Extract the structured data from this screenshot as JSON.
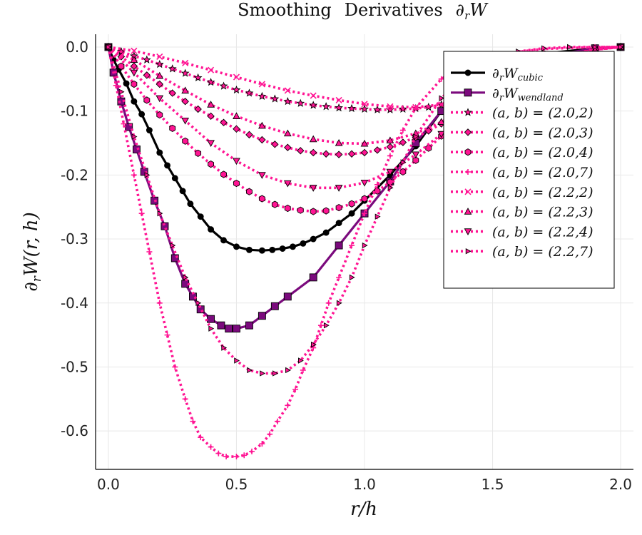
{
  "chart_data": {
    "type": "line",
    "title": "Smoothing Derivatives ∂rW",
    "xlabel": "r/h",
    "ylabel": "∂rW(r, h)",
    "xlim": [
      -0.05,
      2.05
    ],
    "ylim": [
      -0.66,
      0.02
    ],
    "xticks": [
      0.0,
      0.5,
      1.0,
      1.5,
      2.0
    ],
    "xtick_labels": [
      "0.0",
      "0.5",
      "1.0",
      "1.5",
      "2.0"
    ],
    "yticks": [
      0.0,
      -0.1,
      -0.2,
      -0.3,
      -0.4,
      -0.5,
      -0.6
    ],
    "ytick_labels": [
      "0.0",
      "-0.1",
      "-0.2",
      "-0.3",
      "-0.4",
      "-0.5",
      "-0.6"
    ],
    "grid": true,
    "legend_position": "top-right",
    "series": [
      {
        "name": "∂rWcubic",
        "color": "#000000",
        "style": "solid",
        "marker": "circle",
        "x": [
          0.0,
          0.02,
          0.04,
          0.07,
          0.1,
          0.13,
          0.16,
          0.2,
          0.23,
          0.26,
          0.29,
          0.32,
          0.36,
          0.4,
          0.45,
          0.5,
          0.55,
          0.6,
          0.64,
          0.68,
          0.72,
          0.76,
          0.8,
          0.85,
          0.9,
          0.95,
          1.0,
          1.1,
          1.2,
          1.3,
          1.4,
          1.5,
          1.7,
          1.9,
          2.0
        ],
        "y": [
          0.0,
          -0.02,
          -0.035,
          -0.057,
          -0.085,
          -0.105,
          -0.13,
          -0.165,
          -0.185,
          -0.205,
          -0.225,
          -0.245,
          -0.265,
          -0.285,
          -0.302,
          -0.312,
          -0.317,
          -0.318,
          -0.317,
          -0.315,
          -0.312,
          -0.307,
          -0.3,
          -0.29,
          -0.275,
          -0.26,
          -0.24,
          -0.2,
          -0.155,
          -0.1,
          -0.06,
          -0.03,
          -0.01,
          -0.002,
          0.0
        ]
      },
      {
        "name": "∂rWwendland",
        "color": "#7b0a7d",
        "style": "solid",
        "marker": "square",
        "x": [
          0.0,
          0.02,
          0.05,
          0.08,
          0.11,
          0.14,
          0.18,
          0.22,
          0.26,
          0.3,
          0.33,
          0.36,
          0.4,
          0.44,
          0.47,
          0.5,
          0.55,
          0.6,
          0.65,
          0.7,
          0.8,
          0.9,
          1.0,
          1.1,
          1.2,
          1.3,
          1.5,
          1.7,
          1.9,
          2.0
        ],
        "y": [
          0.0,
          -0.04,
          -0.085,
          -0.125,
          -0.16,
          -0.195,
          -0.24,
          -0.28,
          -0.33,
          -0.37,
          -0.39,
          -0.41,
          -0.425,
          -0.435,
          -0.44,
          -0.44,
          -0.435,
          -0.42,
          -0.405,
          -0.39,
          -0.36,
          -0.31,
          -0.26,
          -0.21,
          -0.15,
          -0.1,
          -0.045,
          -0.015,
          -0.002,
          0.0
        ]
      },
      {
        "name": "(a, b) = (2.0,2)",
        "color": "#ff1493",
        "style": "dotted",
        "marker": "star",
        "x": [
          0.0,
          0.05,
          0.1,
          0.15,
          0.2,
          0.25,
          0.3,
          0.35,
          0.4,
          0.45,
          0.5,
          0.55,
          0.6,
          0.65,
          0.7,
          0.75,
          0.8,
          0.85,
          0.9,
          0.95,
          1.0,
          1.05,
          1.1,
          1.15,
          1.2,
          1.25,
          1.3,
          1.35,
          1.4,
          1.5,
          1.6,
          1.7,
          1.8,
          1.9,
          2.0
        ],
        "y": [
          0.0,
          -0.007,
          -0.014,
          -0.02,
          -0.027,
          -0.034,
          -0.041,
          -0.048,
          -0.055,
          -0.061,
          -0.067,
          -0.072,
          -0.077,
          -0.081,
          -0.085,
          -0.088,
          -0.091,
          -0.093,
          -0.095,
          -0.096,
          -0.097,
          -0.098,
          -0.098,
          -0.097,
          -0.096,
          -0.094,
          -0.09,
          -0.085,
          -0.078,
          -0.06,
          -0.042,
          -0.026,
          -0.013,
          -0.004,
          0.0
        ]
      },
      {
        "name": "(a, b) = (2.0,3)",
        "color": "#ff1493",
        "style": "dotted",
        "marker": "diamond",
        "x": [
          0.0,
          0.05,
          0.1,
          0.15,
          0.2,
          0.25,
          0.3,
          0.35,
          0.4,
          0.45,
          0.5,
          0.55,
          0.6,
          0.65,
          0.7,
          0.75,
          0.8,
          0.85,
          0.9,
          0.95,
          1.0,
          1.05,
          1.1,
          1.15,
          1.2,
          1.25,
          1.3,
          1.35,
          1.4,
          1.5,
          1.6,
          1.7,
          1.8,
          1.9,
          2.0
        ],
        "y": [
          0.0,
          -0.015,
          -0.03,
          -0.044,
          -0.058,
          -0.072,
          -0.085,
          -0.097,
          -0.108,
          -0.118,
          -0.128,
          -0.137,
          -0.145,
          -0.152,
          -0.157,
          -0.162,
          -0.165,
          -0.167,
          -0.168,
          -0.167,
          -0.165,
          -0.161,
          -0.156,
          -0.149,
          -0.141,
          -0.131,
          -0.12,
          -0.108,
          -0.095,
          -0.069,
          -0.046,
          -0.028,
          -0.014,
          -0.004,
          0.0
        ]
      },
      {
        "name": "(a, b) = (2.0,4)",
        "color": "#ff1493",
        "style": "dotted",
        "marker": "hexagon",
        "x": [
          0.0,
          0.05,
          0.1,
          0.15,
          0.2,
          0.25,
          0.3,
          0.35,
          0.4,
          0.45,
          0.5,
          0.55,
          0.6,
          0.65,
          0.7,
          0.75,
          0.8,
          0.85,
          0.9,
          0.95,
          1.0,
          1.05,
          1.1,
          1.15,
          1.2,
          1.25,
          1.3,
          1.35,
          1.4,
          1.5,
          1.6,
          1.7,
          1.8,
          1.9,
          2.0
        ],
        "y": [
          0.0,
          -0.03,
          -0.058,
          -0.083,
          -0.106,
          -0.127,
          -0.147,
          -0.166,
          -0.183,
          -0.199,
          -0.213,
          -0.226,
          -0.237,
          -0.246,
          -0.252,
          -0.255,
          -0.257,
          -0.256,
          -0.251,
          -0.245,
          -0.237,
          -0.225,
          -0.211,
          -0.195,
          -0.177,
          -0.158,
          -0.139,
          -0.12,
          -0.102,
          -0.07,
          -0.045,
          -0.026,
          -0.013,
          -0.004,
          0.0
        ]
      },
      {
        "name": "(a, b) = (2.0,7)",
        "color": "#ff1493",
        "style": "dotted",
        "marker": "plus",
        "x": [
          0.0,
          0.03,
          0.06,
          0.1,
          0.13,
          0.16,
          0.2,
          0.23,
          0.26,
          0.3,
          0.33,
          0.36,
          0.4,
          0.43,
          0.46,
          0.5,
          0.53,
          0.56,
          0.6,
          0.63,
          0.66,
          0.7,
          0.73,
          0.76,
          0.8,
          0.83,
          0.86,
          0.9,
          0.95,
          1.0,
          1.05,
          1.1,
          1.15,
          1.2,
          1.3,
          1.4,
          1.5,
          1.7,
          1.9,
          2.0
        ],
        "y": [
          0.0,
          -0.06,
          -0.12,
          -0.2,
          -0.26,
          -0.32,
          -0.4,
          -0.45,
          -0.5,
          -0.55,
          -0.585,
          -0.61,
          -0.625,
          -0.635,
          -0.64,
          -0.64,
          -0.638,
          -0.632,
          -0.62,
          -0.605,
          -0.585,
          -0.56,
          -0.535,
          -0.505,
          -0.47,
          -0.435,
          -0.4,
          -0.36,
          -0.31,
          -0.26,
          -0.215,
          -0.17,
          -0.13,
          -0.095,
          -0.05,
          -0.025,
          -0.012,
          -0.003,
          0.0,
          0.0
        ]
      },
      {
        "name": "(a, b) = (2.2,2)",
        "color": "#ff1493",
        "style": "dotted",
        "marker": "x",
        "x": [
          0.0,
          0.1,
          0.2,
          0.3,
          0.4,
          0.5,
          0.6,
          0.7,
          0.8,
          0.9,
          1.0,
          1.1,
          1.2,
          1.3,
          1.4,
          1.5,
          1.6,
          1.7,
          1.8,
          1.9,
          2.0
        ],
        "y": [
          0.0,
          -0.006,
          -0.015,
          -0.025,
          -0.036,
          -0.047,
          -0.058,
          -0.068,
          -0.076,
          -0.083,
          -0.089,
          -0.093,
          -0.094,
          -0.09,
          -0.078,
          -0.06,
          -0.04,
          -0.024,
          -0.012,
          -0.004,
          0.0
        ]
      },
      {
        "name": "(a, b) = (2.2,3)",
        "color": "#ff1493",
        "style": "dotted",
        "marker": "triangle-up",
        "x": [
          0.0,
          0.1,
          0.2,
          0.3,
          0.4,
          0.5,
          0.6,
          0.7,
          0.8,
          0.9,
          1.0,
          1.1,
          1.2,
          1.3,
          1.4,
          1.5,
          1.6,
          1.7,
          1.8,
          1.9,
          2.0
        ],
        "y": [
          0.0,
          -0.02,
          -0.045,
          -0.068,
          -0.09,
          -0.108,
          -0.123,
          -0.135,
          -0.144,
          -0.15,
          -0.151,
          -0.146,
          -0.135,
          -0.117,
          -0.095,
          -0.07,
          -0.047,
          -0.028,
          -0.013,
          -0.004,
          0.0
        ]
      },
      {
        "name": "(a, b) = (2.2,4)",
        "color": "#ff1493",
        "style": "dotted",
        "marker": "triangle-down",
        "x": [
          0.0,
          0.1,
          0.2,
          0.3,
          0.4,
          0.5,
          0.6,
          0.7,
          0.8,
          0.9,
          1.0,
          1.1,
          1.2,
          1.3,
          1.4,
          1.5,
          1.6,
          1.7,
          1.8,
          1.9,
          2.0
        ],
        "y": [
          0.0,
          -0.04,
          -0.08,
          -0.115,
          -0.15,
          -0.178,
          -0.2,
          -0.213,
          -0.22,
          -0.22,
          -0.212,
          -0.195,
          -0.168,
          -0.136,
          -0.102,
          -0.07,
          -0.045,
          -0.025,
          -0.012,
          -0.003,
          0.0
        ]
      },
      {
        "name": "(a, b) = (2.2,7)",
        "color": "#ff1493",
        "style": "dotted",
        "marker": "triangle-right",
        "x": [
          0.0,
          0.05,
          0.1,
          0.15,
          0.2,
          0.25,
          0.3,
          0.35,
          0.4,
          0.45,
          0.5,
          0.55,
          0.6,
          0.65,
          0.7,
          0.75,
          0.8,
          0.85,
          0.9,
          0.95,
          1.0,
          1.05,
          1.1,
          1.15,
          1.2,
          1.3,
          1.4,
          1.5,
          1.6,
          1.7,
          1.8,
          1.9,
          2.0
        ],
        "y": [
          0.0,
          -0.07,
          -0.14,
          -0.2,
          -0.26,
          -0.31,
          -0.36,
          -0.4,
          -0.44,
          -0.47,
          -0.49,
          -0.505,
          -0.51,
          -0.51,
          -0.505,
          -0.49,
          -0.465,
          -0.435,
          -0.4,
          -0.36,
          -0.31,
          -0.265,
          -0.22,
          -0.18,
          -0.14,
          -0.08,
          -0.04,
          -0.018,
          -0.007,
          -0.002,
          0.0,
          0.0,
          0.0
        ]
      }
    ]
  }
}
